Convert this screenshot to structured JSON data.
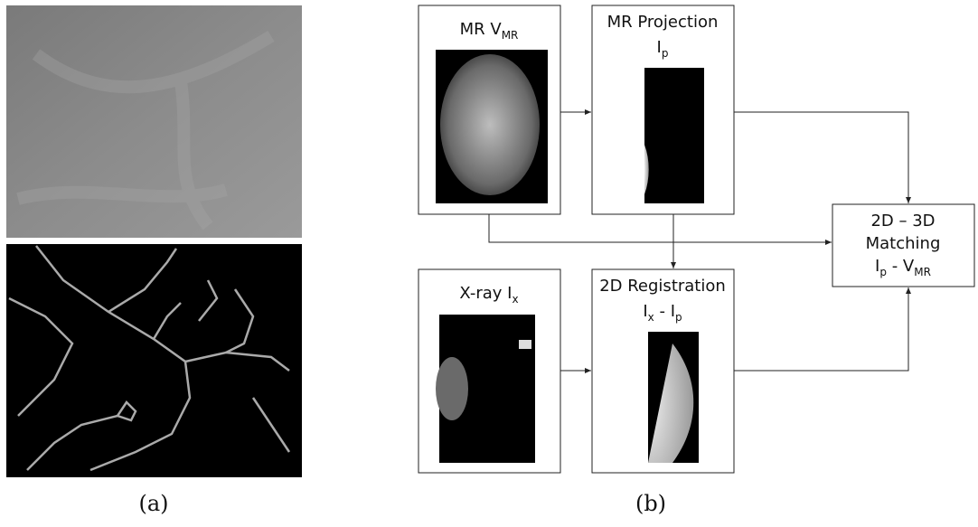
{
  "captions": [
    "(a)",
    "(b)"
  ],
  "nodes": [
    {
      "lines": [
        [
          {
            "t": "MR V"
          },
          {
            "s": "MR"
          }
        ]
      ]
    },
    {
      "lines": [
        [
          {
            "t": "MR Projection"
          }
        ],
        [
          {
            "t": "I"
          },
          {
            "s": "p"
          }
        ]
      ]
    },
    {
      "lines": [
        [
          {
            "t": "X-ray I"
          },
          {
            "s": "x"
          }
        ]
      ]
    },
    {
      "lines": [
        [
          {
            "t": "2D Registration"
          }
        ],
        [
          {
            "t": "I"
          },
          {
            "s": "x"
          },
          {
            "t": " - I"
          },
          {
            "s": "p"
          }
        ]
      ]
    },
    {
      "lines": [
        [
          {
            "t": "2D – 3D"
          }
        ],
        [
          {
            "t": "Matching"
          }
        ],
        [
          {
            "t": "I"
          },
          {
            "s": "p"
          },
          {
            "t": " - V"
          },
          {
            "s": "MR"
          }
        ]
      ]
    }
  ]
}
